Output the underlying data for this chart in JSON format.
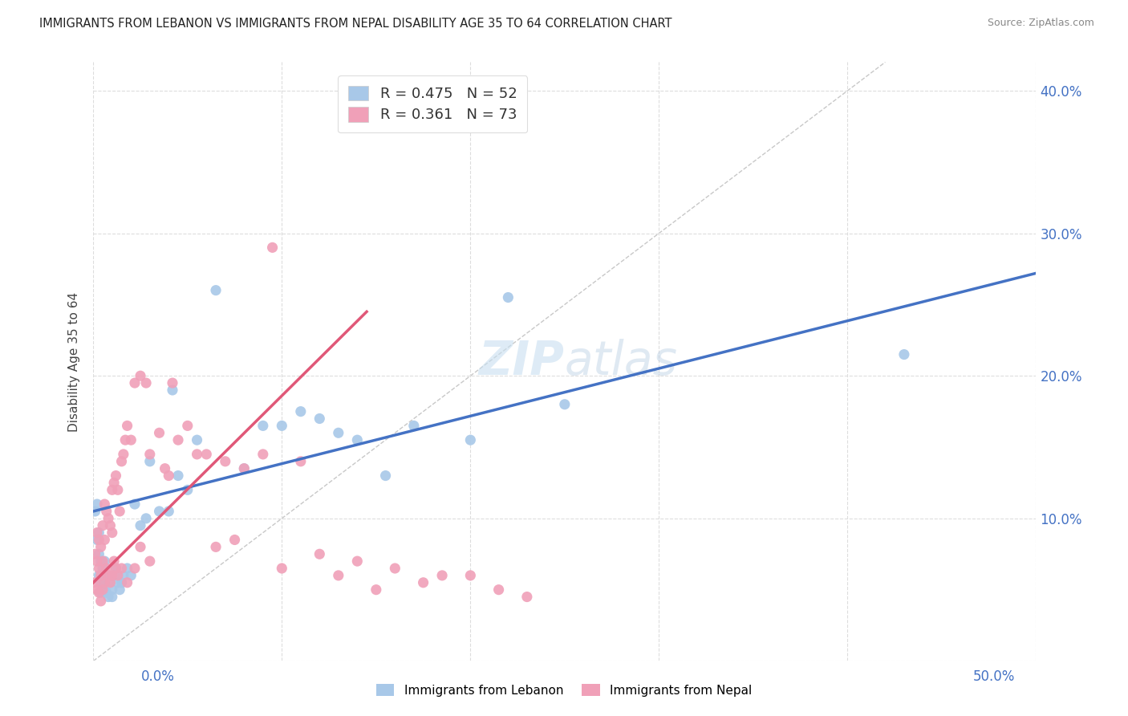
{
  "title": "IMMIGRANTS FROM LEBANON VS IMMIGRANTS FROM NEPAL DISABILITY AGE 35 TO 64 CORRELATION CHART",
  "source": "Source: ZipAtlas.com",
  "ylabel": "Disability Age 35 to 64",
  "xlim": [
    0.0,
    0.5
  ],
  "ylim": [
    0.0,
    0.42
  ],
  "color_lebanon": "#a8c8e8",
  "color_nepal": "#f0a0b8",
  "line_color_lebanon": "#4472c4",
  "line_color_nepal": "#e05878",
  "diagonal_color": "#c8c8c8",
  "background_color": "#ffffff",
  "tick_color": "#4472c4",
  "watermark_color": "#c8dff0",
  "legend_R1": "R = 0.475",
  "legend_N1": "N = 52",
  "legend_R2": "R = 0.361",
  "legend_N2": "N = 73",
  "legend_labels": [
    "Immigrants from Lebanon",
    "Immigrants from Nepal"
  ],
  "leb_line_x0": 0.0,
  "leb_line_y0": 0.105,
  "leb_line_x1": 0.5,
  "leb_line_y1": 0.272,
  "nep_line_x0": 0.0,
  "nep_line_y0": 0.055,
  "nep_line_x1": 0.145,
  "nep_line_y1": 0.245,
  "leb_scatter_x": [
    0.001,
    0.002,
    0.002,
    0.003,
    0.003,
    0.003,
    0.004,
    0.004,
    0.004,
    0.005,
    0.005,
    0.006,
    0.006,
    0.007,
    0.007,
    0.008,
    0.008,
    0.009,
    0.01,
    0.01,
    0.011,
    0.012,
    0.013,
    0.014,
    0.015,
    0.016,
    0.018,
    0.02,
    0.022,
    0.025,
    0.028,
    0.03,
    0.035,
    0.04,
    0.042,
    0.045,
    0.05,
    0.055,
    0.065,
    0.08,
    0.09,
    0.1,
    0.11,
    0.12,
    0.13,
    0.14,
    0.155,
    0.17,
    0.2,
    0.22,
    0.25,
    0.43
  ],
  "leb_scatter_y": [
    0.105,
    0.11,
    0.085,
    0.09,
    0.075,
    0.06,
    0.07,
    0.055,
    0.048,
    0.065,
    0.05,
    0.07,
    0.055,
    0.06,
    0.048,
    0.06,
    0.045,
    0.055,
    0.05,
    0.045,
    0.06,
    0.065,
    0.055,
    0.05,
    0.055,
    0.06,
    0.065,
    0.06,
    0.11,
    0.095,
    0.1,
    0.14,
    0.105,
    0.105,
    0.19,
    0.13,
    0.12,
    0.155,
    0.26,
    0.135,
    0.165,
    0.165,
    0.175,
    0.17,
    0.16,
    0.155,
    0.13,
    0.165,
    0.155,
    0.255,
    0.18,
    0.215
  ],
  "nep_scatter_x": [
    0.001,
    0.001,
    0.002,
    0.002,
    0.002,
    0.003,
    0.003,
    0.003,
    0.004,
    0.004,
    0.004,
    0.005,
    0.005,
    0.005,
    0.006,
    0.006,
    0.006,
    0.007,
    0.007,
    0.008,
    0.008,
    0.009,
    0.009,
    0.01,
    0.01,
    0.01,
    0.011,
    0.011,
    0.012,
    0.012,
    0.013,
    0.013,
    0.014,
    0.015,
    0.015,
    0.016,
    0.017,
    0.018,
    0.018,
    0.02,
    0.022,
    0.022,
    0.025,
    0.025,
    0.028,
    0.03,
    0.03,
    0.035,
    0.038,
    0.04,
    0.042,
    0.045,
    0.05,
    0.055,
    0.06,
    0.065,
    0.07,
    0.075,
    0.08,
    0.09,
    0.095,
    0.1,
    0.11,
    0.12,
    0.13,
    0.14,
    0.15,
    0.16,
    0.175,
    0.185,
    0.2,
    0.215,
    0.23
  ],
  "nep_scatter_y": [
    0.075,
    0.055,
    0.09,
    0.07,
    0.05,
    0.085,
    0.065,
    0.048,
    0.08,
    0.06,
    0.042,
    0.095,
    0.07,
    0.05,
    0.11,
    0.085,
    0.055,
    0.105,
    0.065,
    0.1,
    0.06,
    0.095,
    0.055,
    0.12,
    0.09,
    0.06,
    0.125,
    0.07,
    0.13,
    0.065,
    0.12,
    0.06,
    0.105,
    0.14,
    0.065,
    0.145,
    0.155,
    0.165,
    0.055,
    0.155,
    0.195,
    0.065,
    0.2,
    0.08,
    0.195,
    0.145,
    0.07,
    0.16,
    0.135,
    0.13,
    0.195,
    0.155,
    0.165,
    0.145,
    0.145,
    0.08,
    0.14,
    0.085,
    0.135,
    0.145,
    0.29,
    0.065,
    0.14,
    0.075,
    0.06,
    0.07,
    0.05,
    0.065,
    0.055,
    0.06,
    0.06,
    0.05,
    0.045
  ]
}
